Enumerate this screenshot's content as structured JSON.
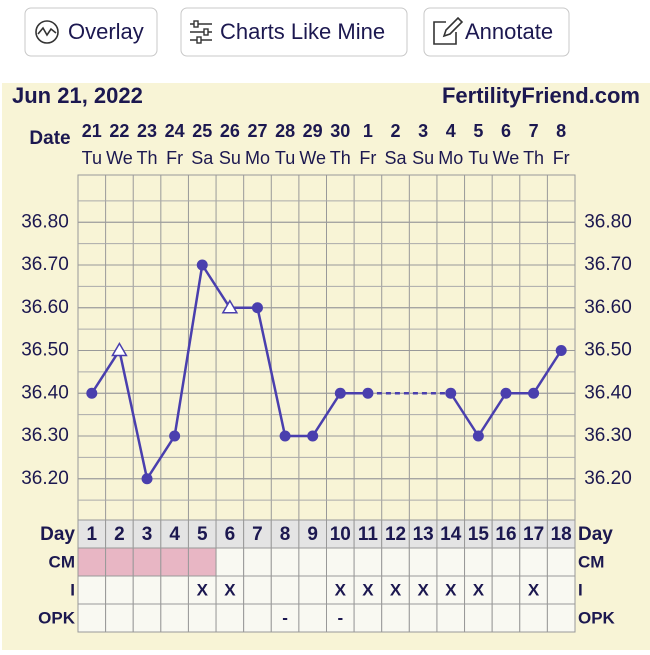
{
  "buttons": [
    "Overlay",
    "Charts Like Mine",
    "Annotate"
  ],
  "chart_data": {
    "type": "line",
    "title": "Jun 21, 2022",
    "source": "FertilityFriend.com",
    "date_label": "Date",
    "categories": [
      "21",
      "22",
      "23",
      "24",
      "25",
      "26",
      "27",
      "28",
      "29",
      "30",
      "1",
      "2",
      "3",
      "4",
      "5",
      "6",
      "7",
      "8"
    ],
    "weekdays": [
      "Tu",
      "We",
      "Th",
      "Fr",
      "Sa",
      "Su",
      "Mo",
      "Tu",
      "We",
      "Th",
      "Fr",
      "Sa",
      "Su",
      "Mo",
      "Tu",
      "We",
      "Th",
      "Fr"
    ],
    "series": [
      {
        "color": "#4a3fae",
        "values": [
          36.4,
          36.5,
          36.2,
          36.3,
          36.7,
          36.6,
          36.6,
          36.3,
          36.3,
          36.4,
          36.4,
          null,
          null,
          36.4,
          36.3,
          36.4,
          36.4,
          36.5
        ],
        "markers": [
          "circle",
          "triangle",
          "circle",
          "circle",
          "circle",
          "triangle",
          "circle",
          "circle",
          "circle",
          "circle",
          "circle",
          null,
          null,
          "circle",
          "circle",
          "circle",
          "circle",
          "circle"
        ],
        "gap_line": "dashed"
      }
    ],
    "ylim": [
      36.1,
      36.9
    ],
    "yticks": [
      {
        "value": 36.2,
        "label": "36.20"
      },
      {
        "value": 36.3,
        "label": "36.30"
      },
      {
        "value": 36.4,
        "label": "36.40"
      },
      {
        "value": 36.5,
        "label": "36.50"
      },
      {
        "value": 36.6,
        "label": "36.60"
      },
      {
        "value": 36.7,
        "label": "36.70"
      },
      {
        "value": 36.8,
        "label": "36.80"
      }
    ],
    "grid": true,
    "table": {
      "rows": [
        {
          "label": "Day",
          "cells": [
            1,
            2,
            3,
            4,
            5,
            6,
            7,
            8,
            9,
            10,
            11,
            12,
            13,
            14,
            15,
            16,
            17,
            18
          ]
        },
        {
          "label": "CM",
          "cells": [
            null,
            null,
            null,
            null,
            null,
            null,
            null,
            null,
            null,
            null,
            null,
            null,
            null,
            null,
            null,
            null,
            null,
            null
          ],
          "fills": [
            "#e8b6c4",
            "#e8b6c4",
            "#e8b6c4",
            "#e8b6c4",
            "#e8b6c4",
            null,
            null,
            null,
            null,
            null,
            null,
            null,
            null,
            null,
            null,
            null,
            null,
            null
          ]
        },
        {
          "label": "I",
          "cells": [
            null,
            null,
            null,
            null,
            "X",
            "X",
            null,
            null,
            null,
            "X",
            "X",
            "X",
            "X",
            "X",
            "X",
            null,
            "X",
            null
          ]
        },
        {
          "label": "OPK",
          "cells": [
            null,
            null,
            null,
            null,
            null,
            null,
            null,
            "-",
            null,
            "-",
            null,
            null,
            null,
            null,
            null,
            null,
            null,
            null
          ]
        }
      ]
    }
  }
}
